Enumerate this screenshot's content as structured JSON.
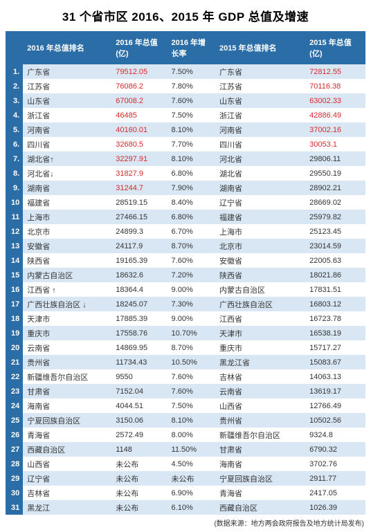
{
  "title": "31 个省市区 2016、2015 年 GDP 总值及增速",
  "columns": {
    "rank": "",
    "name2016": "2016 年总值排名",
    "value2016": "2016 年总值 (亿)",
    "rate2016": "2016 年增长率",
    "name2015": "2015 年总值排名",
    "value2015": "2015 年总值 (亿)"
  },
  "rows": [
    {
      "idx": "1.",
      "n16": "广东省",
      "v16": "79512.05",
      "r": "7.50%",
      "n15": "广东省",
      "v15": "72812.55",
      "rv16": true,
      "rv15": true
    },
    {
      "idx": "2.",
      "n16": "江苏省",
      "v16": "76086.2",
      "r": "7.80%",
      "n15": "江苏省",
      "v15": "70116.38",
      "rv16": true,
      "rv15": true
    },
    {
      "idx": "3.",
      "n16": "山东省",
      "v16": "67008.2",
      "r": "7.60%",
      "n15": "山东省",
      "v15": "63002.33",
      "rv16": true,
      "rv15": true
    },
    {
      "idx": "4.",
      "n16": "浙江省",
      "v16": "46485",
      "r": "7.50%",
      "n15": "浙江省",
      "v15": "42886.49",
      "rv16": true,
      "rv15": true
    },
    {
      "idx": "5.",
      "n16": "河南省",
      "v16": "40160.01",
      "r": "8.10%",
      "n15": "河南省",
      "v15": "37002.16",
      "rv16": true,
      "rv15": true
    },
    {
      "idx": "6.",
      "n16": "四川省",
      "v16": "32680.5",
      "r": "7.70%",
      "n15": "四川省",
      "v15": "30053.1",
      "rv16": true,
      "rv15": true
    },
    {
      "idx": "7.",
      "n16": "湖北省↑",
      "v16": "32297.91",
      "r": "8.10%",
      "n15": "河北省",
      "v15": "29806.11",
      "rv16": true,
      "rv15": false
    },
    {
      "idx": "8.",
      "n16": "河北省↓",
      "v16": "31827.9",
      "r": "6.80%",
      "n15": "湖北省",
      "v15": "29550.19",
      "rv16": true,
      "rv15": false
    },
    {
      "idx": "9.",
      "n16": "湖南省",
      "v16": "31244.7",
      "r": "7.90%",
      "n15": "湖南省",
      "v15": "28902.21",
      "rv16": true,
      "rv15": false
    },
    {
      "idx": "10",
      "n16": "福建省",
      "v16": "28519.15",
      "r": "8.40%",
      "n15": "辽宁省",
      "v15": "28669.02",
      "rv16": false,
      "rv15": false
    },
    {
      "idx": "11",
      "n16": "上海市",
      "v16": "27466.15",
      "r": "6.80%",
      "n15": "福建省",
      "v15": "25979.82",
      "rv16": false,
      "rv15": false
    },
    {
      "idx": "12",
      "n16": "北京市",
      "v16": "24899.3",
      "r": "6.70%",
      "n15": "上海市",
      "v15": "25123.45",
      "rv16": false,
      "rv15": false
    },
    {
      "idx": "13",
      "n16": "安徽省",
      "v16": "24117.9",
      "r": "8.70%",
      "n15": "北京市",
      "v15": "23014.59",
      "rv16": false,
      "rv15": false
    },
    {
      "idx": "14",
      "n16": "陕西省",
      "v16": "19165.39",
      "r": "7.60%",
      "n15": "安徽省",
      "v15": "22005.63",
      "rv16": false,
      "rv15": false
    },
    {
      "idx": "15",
      "n16": "内蒙古自治区",
      "v16": "18632.6",
      "r": "7.20%",
      "n15": "陕西省",
      "v15": "18021.86",
      "rv16": false,
      "rv15": false
    },
    {
      "idx": "16",
      "n16": "江西省 ↑",
      "v16": "18364.4",
      "r": "9.00%",
      "n15": "内蒙古自治区",
      "v15": "17831.51",
      "rv16": false,
      "rv15": false
    },
    {
      "idx": "17",
      "n16": "广西壮族自治区 ↓",
      "v16": "18245.07",
      "r": "7.30%",
      "n15": "广西壮族自治区",
      "v15": "16803.12",
      "rv16": false,
      "rv15": false
    },
    {
      "idx": "18",
      "n16": "天津市",
      "v16": "17885.39",
      "r": "9.00%",
      "n15": "江西省",
      "v15": "16723.78",
      "rv16": false,
      "rv15": false
    },
    {
      "idx": "19",
      "n16": "重庆市",
      "v16": "17558.76",
      "r": "10.70%",
      "n15": "天津市",
      "v15": "16538.19",
      "rv16": false,
      "rv15": false
    },
    {
      "idx": "20",
      "n16": "云南省",
      "v16": "14869.95",
      "r": "8.70%",
      "n15": "重庆市",
      "v15": "15717.27",
      "rv16": false,
      "rv15": false
    },
    {
      "idx": "21",
      "n16": "贵州省",
      "v16": "11734.43",
      "r": "10.50%",
      "n15": "黑龙江省",
      "v15": "15083.67",
      "rv16": false,
      "rv15": false
    },
    {
      "idx": "22",
      "n16": "新疆维吾尔自治区",
      "v16": "9550",
      "r": "7.60%",
      "n15": "吉林省",
      "v15": "14063.13",
      "rv16": false,
      "rv15": false
    },
    {
      "idx": "23",
      "n16": "甘肃省",
      "v16": "7152.04",
      "r": "7.60%",
      "n15": "云南省",
      "v15": "13619.17",
      "rv16": false,
      "rv15": false
    },
    {
      "idx": "24",
      "n16": "海南省",
      "v16": "4044.51",
      "r": "7.50%",
      "n15": "山西省",
      "v15": "12766.49",
      "rv16": false,
      "rv15": false
    },
    {
      "idx": "25",
      "n16": "宁夏回族自治区",
      "v16": "3150.06",
      "r": "8.10%",
      "n15": "贵州省",
      "v15": "10502.56",
      "rv16": false,
      "rv15": false
    },
    {
      "idx": "26",
      "n16": "青海省",
      "v16": "2572.49",
      "r": "8.00%",
      "n15": "新疆维吾尔自治区",
      "v15": "9324.8",
      "rv16": false,
      "rv15": false
    },
    {
      "idx": "27",
      "n16": "西藏自治区",
      "v16": "1148",
      "r": "11.50%",
      "n15": "甘肃省",
      "v15": "6790.32",
      "rv16": false,
      "rv15": false
    },
    {
      "idx": "28",
      "n16": "山西省",
      "v16": "未公布",
      "r": "4.50%",
      "n15": "海南省",
      "v15": "3702.76",
      "rv16": false,
      "rv15": false
    },
    {
      "idx": "29",
      "n16": "辽宁省",
      "v16": "未公布",
      "r": "未公布",
      "n15": "宁夏回族自治区",
      "v15": "2911.77",
      "rv16": false,
      "rv15": false
    },
    {
      "idx": "30",
      "n16": "吉林省",
      "v16": "未公布",
      "r": "6.90%",
      "n15": "青海省",
      "v15": "2417.05",
      "rv16": false,
      "rv15": false
    },
    {
      "idx": "31",
      "n16": "黑龙江",
      "v16": "未公布",
      "r": "6.10%",
      "n15": "西藏自治区",
      "v15": "1026.39",
      "rv16": false,
      "rv15": false
    }
  ],
  "footer": "(数据来源：地方两会政府报告及地方统计局发布)",
  "style": {
    "header_bg": "#2b6da6",
    "header_fg": "#ffffff",
    "row_alt_bg": "#d9e7f5",
    "row_bg": "#ffffff",
    "red_text": "#d8292a",
    "title_fontsize": 17,
    "cell_fontsize": 11
  }
}
